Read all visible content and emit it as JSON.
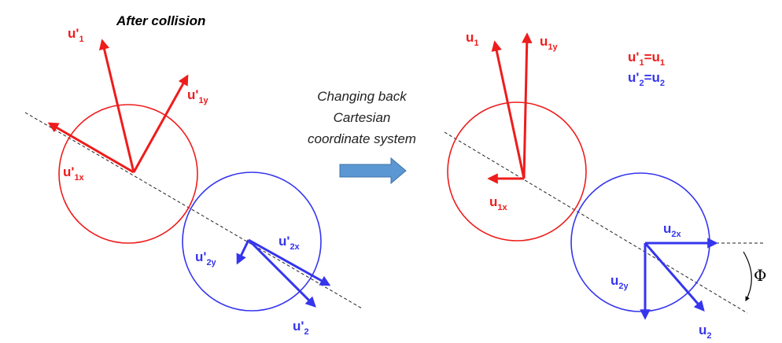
{
  "colors": {
    "red": "#ee1c1c",
    "blue": "#3535ee",
    "arrow_fill": "#5b97d2",
    "arrow_stroke": "#3f73a8"
  },
  "left_panel": {
    "title": "After collision",
    "labels": {
      "u1p": {
        "base": "u'",
        "sub": "1"
      },
      "u1py": {
        "base": "u'",
        "sub": "1y"
      },
      "u1px": {
        "base": "u'",
        "sub": "1x"
      },
      "u2py": {
        "base": "u'",
        "sub": "2y"
      },
      "u2px": {
        "base": "u'",
        "sub": "2x"
      },
      "u2p": {
        "base": "u'",
        "sub": "2"
      }
    }
  },
  "transition": {
    "caption_lines": [
      "Changing back",
      "Cartesian",
      "coordinate system"
    ]
  },
  "right_panel": {
    "labels": {
      "u1": {
        "base": "u",
        "sub": "1"
      },
      "u1y": {
        "base": "u",
        "sub": "1y"
      },
      "u1x": {
        "base": "u",
        "sub": "1x"
      },
      "u2x": {
        "base": "u",
        "sub": "2x"
      },
      "u2y": {
        "base": "u",
        "sub": "2y"
      },
      "u2": {
        "base": "u",
        "sub": "2"
      }
    },
    "eq1": {
      "lhs": "u'",
      "lsub": "1",
      "mid": "=u",
      "rsub": "1"
    },
    "eq2": {
      "lhs": "u'",
      "lsub": "2",
      "mid": "=u",
      "rsub": "2"
    },
    "angle_symbol": "Φ"
  }
}
